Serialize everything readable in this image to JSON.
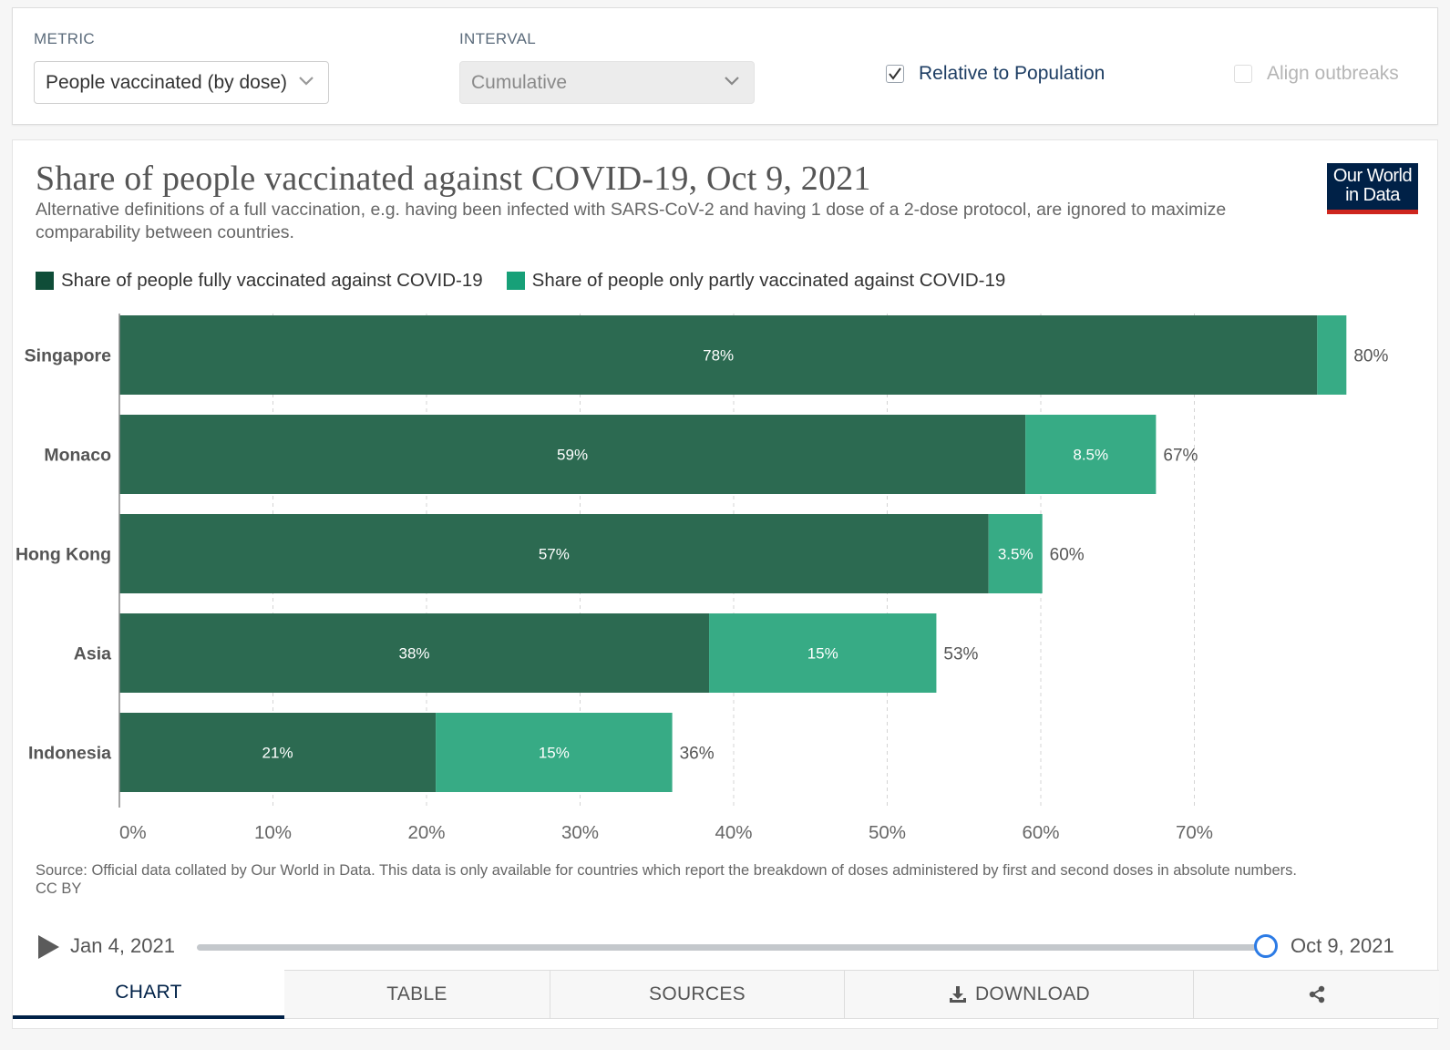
{
  "controls": {
    "metric_label": "METRIC",
    "metric_value": "People vaccinated (by dose)",
    "interval_label": "INTERVAL",
    "interval_value": "Cumulative",
    "relative_label": "Relative to Population",
    "relative_checked": true,
    "align_label": "Align outbreaks",
    "align_checked": false
  },
  "logo": {
    "line1": "Our World",
    "line2": "in Data"
  },
  "colors": {
    "fully": "#2c6a51",
    "partly": "#37ab85",
    "logo_bg": "#002147",
    "logo_bar": "#ce261e",
    "accent": "#2c7be5"
  },
  "chart_data": {
    "type": "bar",
    "orientation": "horizontal",
    "stacked": true,
    "title": "Share of people vaccinated against COVID-19, Oct 9, 2021",
    "subtitle": "Alternative definitions of a full vaccination, e.g. having been infected with SARS-CoV-2 and having 1 dose of a 2-dose protocol, are ignored to maximize comparability between countries.",
    "categories": [
      "Singapore",
      "Monaco",
      "Hong Kong",
      "Asia",
      "Indonesia"
    ],
    "series": [
      {
        "name": "Share of people fully vaccinated against COVID-19",
        "values": [
          78,
          59,
          56.6,
          38.4,
          20.6
        ],
        "labels": [
          "78%",
          "59%",
          "57%",
          "38%",
          "21%"
        ]
      },
      {
        "name": "Share of people only partly vaccinated against COVID-19",
        "values": [
          1.9,
          8.5,
          3.5,
          14.8,
          15.4
        ],
        "labels": [
          "",
          "8.5%",
          "3.5%",
          "15%",
          "15%"
        ]
      }
    ],
    "totals": [
      "80%",
      "67%",
      "60%",
      "53%",
      "36%"
    ],
    "xlim": [
      0,
      80
    ],
    "xticks": [
      0,
      10,
      20,
      30,
      40,
      50,
      60,
      70
    ],
    "xtick_labels": [
      "0%",
      "10%",
      "20%",
      "30%",
      "40%",
      "50%",
      "60%",
      "70%"
    ],
    "grid": true,
    "legend_position": "top-left"
  },
  "source": {
    "text": "Source: Official data collated by Our World in Data. This data is only available for countries which report the breakdown of doses administered by first and second doses in absolute numbers.",
    "license": "CC BY"
  },
  "timeline": {
    "start": "Jan 4, 2021",
    "end": "Oct 9, 2021",
    "position": 1.0
  },
  "tabs": [
    "CHART",
    "TABLE",
    "SOURCES",
    "DOWNLOAD",
    ""
  ]
}
